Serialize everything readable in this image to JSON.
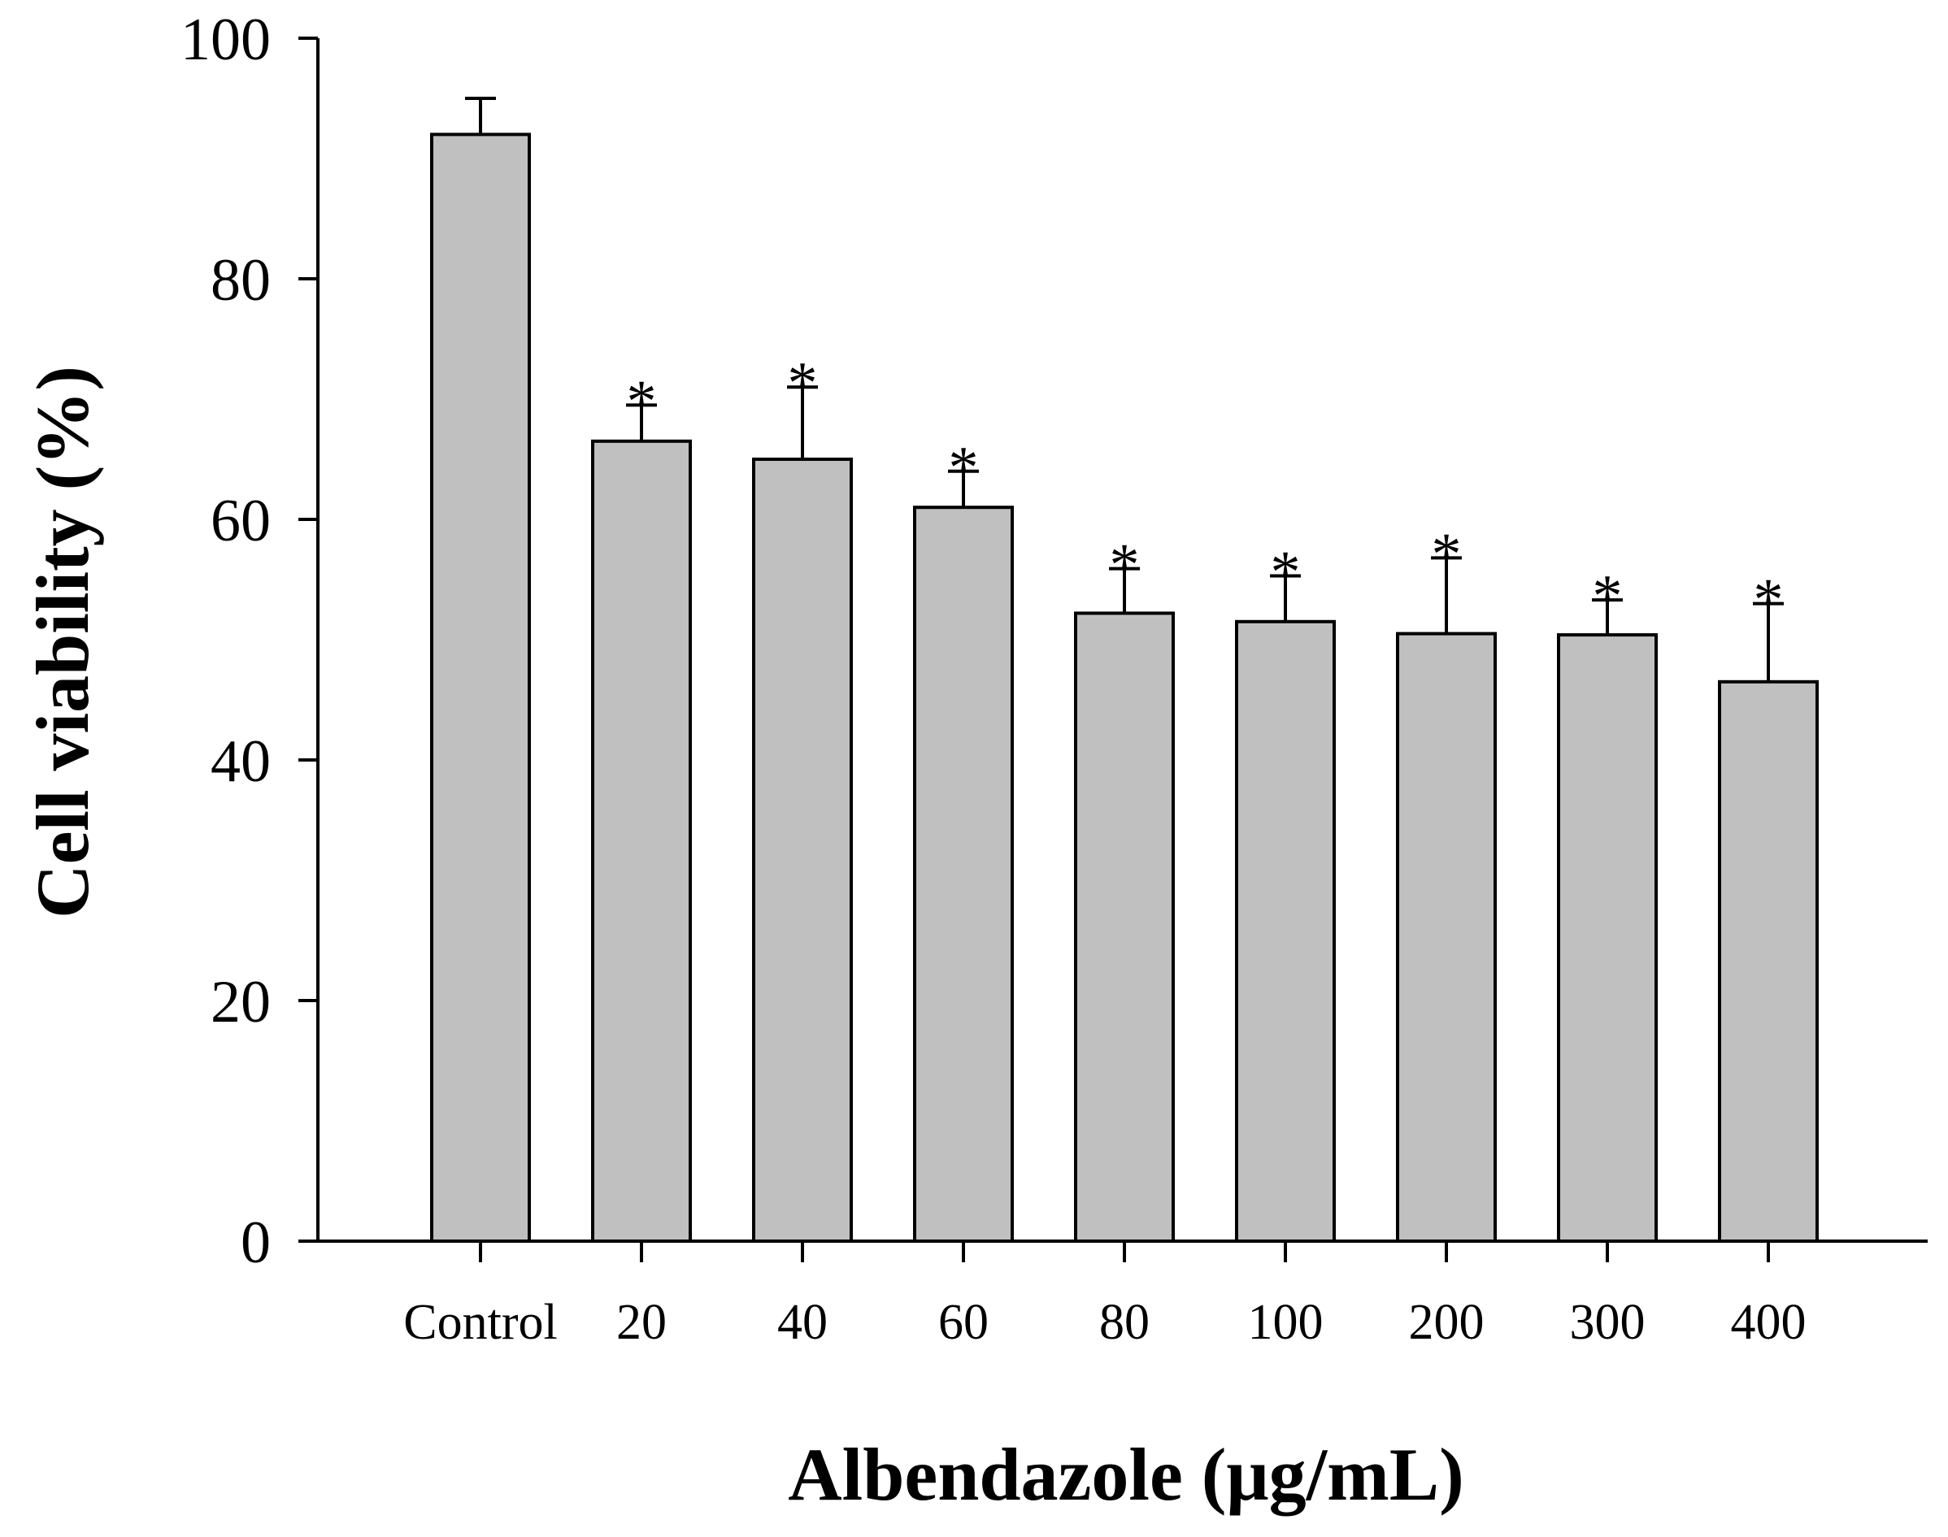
{
  "chart_data": {
    "type": "bar",
    "title": "",
    "xlabel": "Albendazole (μg/mL)",
    "ylabel": "Cell viability (%)",
    "ylim": [
      0,
      100
    ],
    "yticks": [
      0,
      20,
      40,
      60,
      80,
      100
    ],
    "ytick_labels": [
      "0",
      "20",
      "40",
      "60",
      "80",
      "100"
    ],
    "categories": [
      "Control",
      "20",
      "40",
      "60",
      "80",
      "100",
      "200",
      "300",
      "400"
    ],
    "values": [
      92,
      66.5,
      65,
      61,
      52.2,
      51.5,
      50.5,
      50.4,
      46.5
    ],
    "errors": [
      3,
      3,
      6,
      3,
      3.7,
      3.8,
      6.3,
      2.9,
      6.5
    ],
    "significance": [
      "",
      "*",
      "*",
      "*",
      "*",
      "*",
      "*",
      "*",
      "*"
    ],
    "bar_color": "#c0c0c0",
    "grid": false,
    "legend": "none"
  }
}
